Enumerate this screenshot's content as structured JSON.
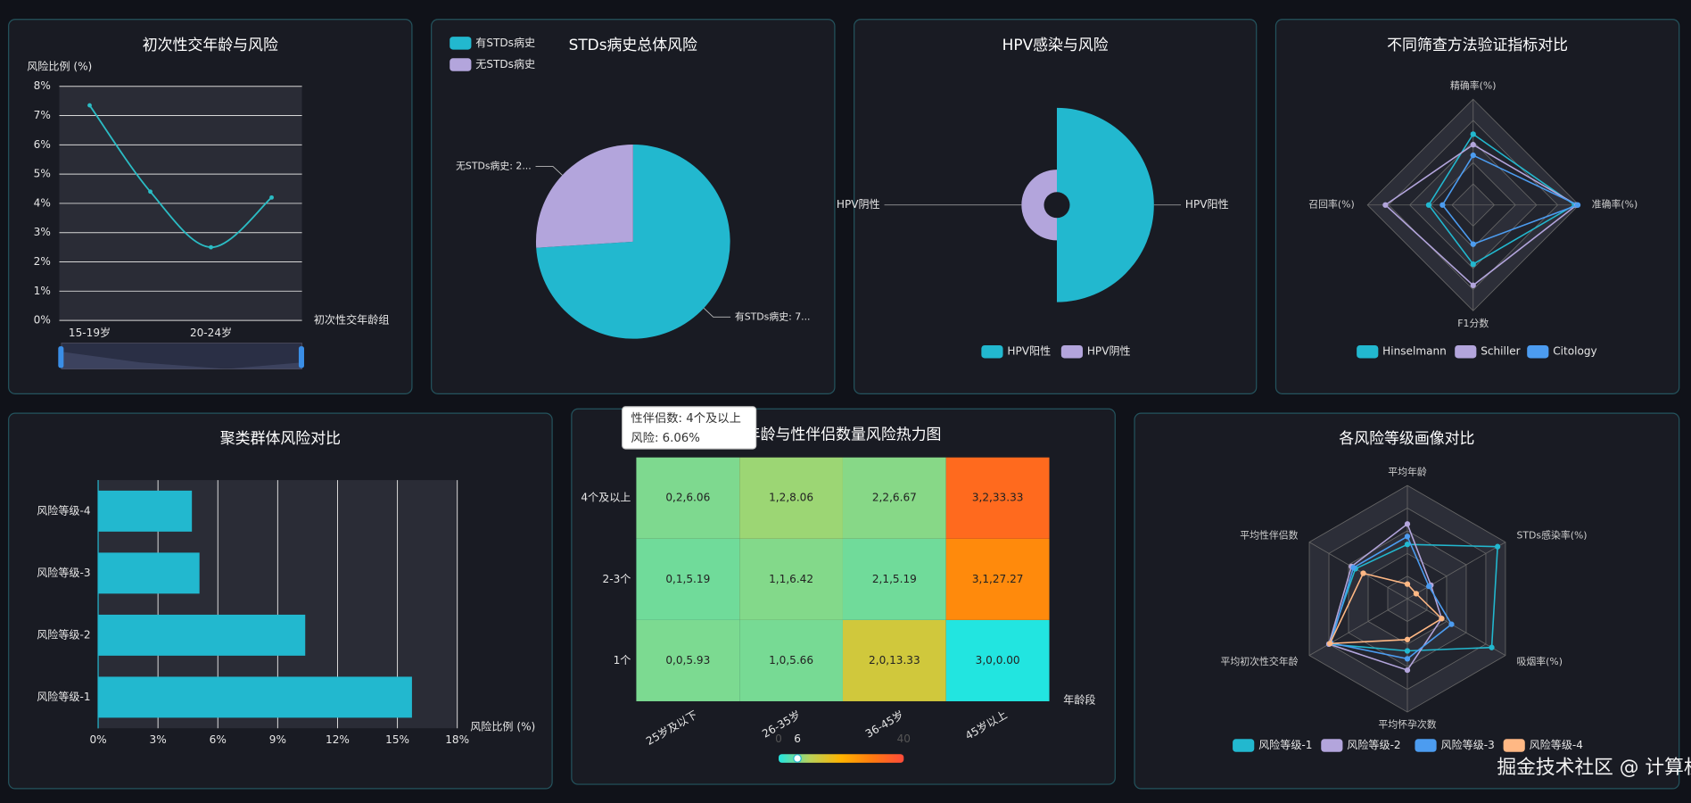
{
  "charts": [
    {
      "type": "line",
      "title": "初次性交年龄与风险",
      "y_label": "风险比例 (%)",
      "x_label": "初次性交年龄组",
      "categories": [
        "15-19岁",
        null,
        "20-24岁",
        null
      ],
      "series": [
        {
          "color": "#2bbcc4",
          "values": [
            7.35,
            4.4,
            2.5,
            4.2
          ]
        }
      ],
      "ylim": [
        0,
        8
      ],
      "yticks": [
        {
          "value": 0,
          "label": "0%"
        },
        {
          "value": 1,
          "label": "1%"
        },
        {
          "value": 2,
          "label": "2%"
        },
        {
          "value": 3,
          "label": "3%"
        },
        {
          "value": 4,
          "label": "4%"
        },
        {
          "value": 5,
          "label": "5%"
        },
        {
          "value": 6,
          "label": "6%"
        },
        {
          "value": 7,
          "label": "7%"
        },
        {
          "value": 8,
          "label": "8%"
        }
      ],
      "smooth": true,
      "grid": true
    },
    {
      "type": "pie",
      "title": "STDs病史总体风险",
      "categories": [
        "有STDs病史",
        "无STDs病史"
      ],
      "values": [
        74,
        26
      ],
      "value_labels": [
        "有STDs病史: 7...",
        "无STDs病史: 2..."
      ],
      "colors": [
        "#22b8cf",
        "#b3a5dc"
      ],
      "legend": "top-left"
    },
    {
      "type": "rose",
      "title": "HPV感染与风险",
      "categories": [
        "HPV阳性",
        "HPV阴性"
      ],
      "values": [
        30,
        8
      ],
      "colors": [
        "#22b8cf",
        "#b3a5dc"
      ],
      "legend": "bottom"
    },
    {
      "type": "radar",
      "title": "不同筛查方法验证指标对比",
      "indicators": [
        "精确率(%)",
        "准确率(%)",
        "F1分数",
        "召回率(%)"
      ],
      "rlim": [
        0,
        100
      ],
      "series": [
        {
          "name": "Hinselmann",
          "color": "#22b8cf",
          "values": [
            67,
            96,
            56,
            42
          ]
        },
        {
          "name": "Schiller",
          "color": "#b3a5dc",
          "values": [
            57,
            98,
            76,
            83
          ]
        },
        {
          "name": "Citology",
          "color": "#4c9cf0",
          "values": [
            47,
            99,
            37,
            29
          ]
        }
      ],
      "legend": "bottom"
    },
    {
      "type": "hbar",
      "title": "聚类群体风险对比",
      "categories": [
        "风险等级-1",
        "风险等级-2",
        "风险等级-3",
        "风险等级-4"
      ],
      "values": [
        15.73,
        10.38,
        5.08,
        4.7
      ],
      "color": "#22b8cf",
      "x_label": "风险比例 (%)",
      "xlim": [
        0,
        18
      ],
      "xticks": [
        {
          "value": 0,
          "label": "0%"
        },
        {
          "value": 3,
          "label": "3%"
        },
        {
          "value": 6,
          "label": "6%"
        },
        {
          "value": 9,
          "label": "9%"
        },
        {
          "value": 12,
          "label": "12%"
        },
        {
          "value": 15,
          "label": "15%"
        },
        {
          "value": 18,
          "label": "18%"
        }
      ],
      "grid": true
    },
    {
      "type": "heatmap",
      "title": "年龄与性伴侣数量风险热力图",
      "x_categories": [
        "25岁及以下",
        "26-35岁",
        "36-45岁",
        "45岁以上"
      ],
      "y_categories": [
        "1个",
        "2-3个",
        "4个及以上"
      ],
      "x_label": "年龄段",
      "cells": [
        {
          "x": 0,
          "y": 0,
          "value": 5.93,
          "label": "0,0,5.93"
        },
        {
          "x": 0,
          "y": 1,
          "value": 5.19,
          "label": "0,1,5.19"
        },
        {
          "x": 0,
          "y": 2,
          "value": 6.06,
          "label": "0,2,6.06"
        },
        {
          "x": 1,
          "y": 0,
          "value": 5.66,
          "label": "1,0,5.66"
        },
        {
          "x": 1,
          "y": 1,
          "value": 6.42,
          "label": "1,1,6.42"
        },
        {
          "x": 1,
          "y": 2,
          "value": 8.06,
          "label": "1,2,8.06"
        },
        {
          "x": 2,
          "y": 0,
          "value": 13.33,
          "label": "2,0,13.33"
        },
        {
          "x": 2,
          "y": 1,
          "value": 5.19,
          "label": "2,1,5.19"
        },
        {
          "x": 2,
          "y": 2,
          "value": 6.67,
          "label": "2,2,6.67"
        },
        {
          "x": 3,
          "y": 0,
          "value": 0.0,
          "label": "3,0,0.00"
        },
        {
          "x": 3,
          "y": 1,
          "value": 27.27,
          "label": "3,1,27.27"
        },
        {
          "x": 3,
          "y": 2,
          "value": 33.33,
          "label": "3,2,33.33"
        }
      ],
      "visual_map": {
        "range": [
          0,
          40
        ],
        "handle": 6,
        "colors": [
          "#22e5e0",
          "#b9d25a",
          "#ffb300",
          "#ff7a10",
          "#ff4b3a"
        ]
      },
      "tooltip": {
        "lines": [
          "性伴侣数: 4个及以上",
          "风险: 6.06%"
        ]
      }
    },
    {
      "type": "radar",
      "title": "各风险等级画像对比",
      "indicators": [
        "平均年龄",
        "STDs感染率(%)",
        "吸烟率(%)",
        "平均怀孕次数",
        "平均初次性交年龄",
        "平均性伴侣数"
      ],
      "rlim": [
        0,
        100
      ],
      "series": [
        {
          "name": "风险等级-1",
          "color": "#22b8cf",
          "values": [
            48,
            92,
            86,
            46,
            80,
            53
          ]
        },
        {
          "name": "风险等级-2",
          "color": "#b3a5dc",
          "values": [
            66,
            24,
            35,
            63,
            80,
            57
          ]
        },
        {
          "name": "风险等级-3",
          "color": "#4c9cf0",
          "values": [
            55,
            22,
            45,
            53,
            78,
            55
          ]
        },
        {
          "name": "风险等级-4",
          "color": "#ffb884",
          "values": [
            13,
            9,
            35,
            36,
            79,
            45
          ]
        }
      ],
      "legend": "bottom"
    }
  ],
  "watermark": "掘金技术社区 @ 计算机编程指导师"
}
